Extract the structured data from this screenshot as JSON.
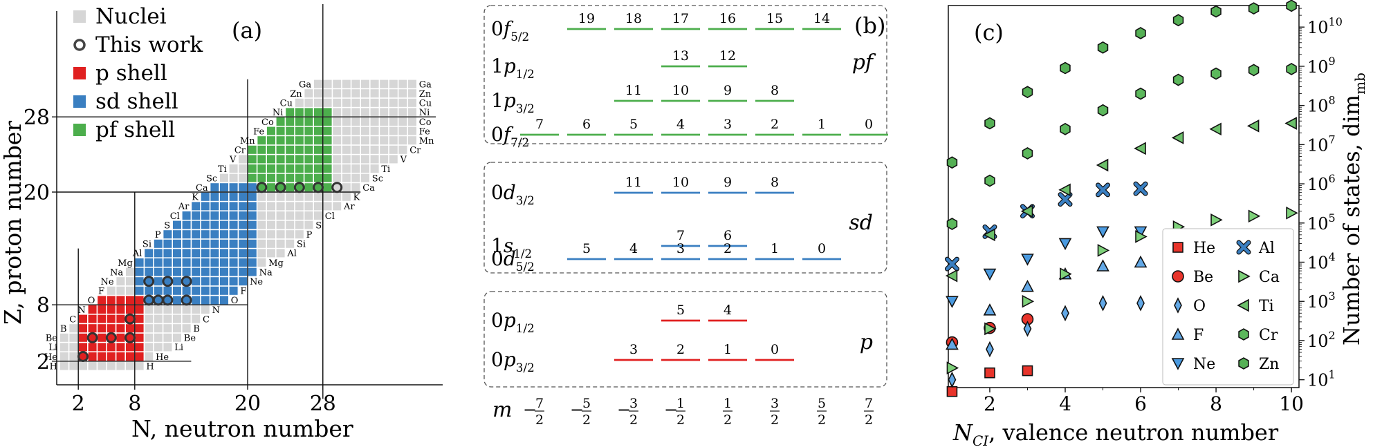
{
  "colors": {
    "nuclei": "#d6d6d6",
    "p_shell": "#e02020",
    "sd_shell": "#3a7fc1",
    "pf_shell": "#4cae4c",
    "He": "#e8342b",
    "Be": "#e8342b",
    "O": "#62a8e6",
    "F": "#62a8e6",
    "Ne": "#4a9ae0",
    "Al": "#3a7fc1",
    "Ca": "#7ed17a",
    "Ti": "#6cc06a",
    "Cr": "#5cb85c",
    "Zn": "#55b055"
  },
  "panel_a": {
    "label": "(a)",
    "xlabel": "N, neutron number",
    "ylabel": "Z, proton number",
    "ticks": [
      "2",
      "8",
      "20",
      "28"
    ],
    "legend": [
      {
        "label": "Nuclei",
        "marker": "square",
        "color": "#d6d6d6"
      },
      {
        "label": "This work",
        "marker": "ring",
        "color": "#444444"
      },
      {
        "label": "p shell",
        "marker": "square",
        "color": "#e02020"
      },
      {
        "label": "sd shell",
        "marker": "square",
        "color": "#3a7fc1"
      },
      {
        "label": "pf shell",
        "marker": "square",
        "color": "#4cae4c"
      }
    ],
    "elements_left": [
      "H",
      "He",
      "Li",
      "Be",
      "B",
      "C",
      "N",
      "O",
      "F",
      "Ne",
      "Na",
      "Mg",
      "Al",
      "Si",
      "P",
      "S",
      "Cl",
      "Ar",
      "K",
      "Ca",
      "Sc",
      "Ti",
      "V",
      "Cr",
      "Mn",
      "Fe",
      "Co",
      "Ni",
      "Cu",
      "Zn",
      "Ga"
    ],
    "elements_right": [
      "H",
      "He",
      "Li",
      "Be",
      "B",
      "C",
      "N",
      "O",
      "F",
      "Ne",
      "Na",
      "Mg",
      "Al",
      "Si",
      "P",
      "S",
      "Cl",
      "Ar",
      "K",
      "Ca",
      "Sc",
      "Ti",
      "V",
      "Cr",
      "Mn",
      "Fe",
      "Co",
      "Ni",
      "Cu",
      "Zn",
      "Ga"
    ]
  },
  "panel_b": {
    "label": "(b)",
    "m_label": "m",
    "m_values": [
      "−7/2",
      "−5/2",
      "−3/2",
      "−1/2",
      "1/2",
      "3/2",
      "5/2",
      "7/2"
    ],
    "groups": [
      {
        "name": "pf",
        "color": "#4cae4c",
        "levels": [
          {
            "orb": "0f",
            "sub": "5/2",
            "indices": [
              19,
              18,
              17,
              16,
              15,
              14
            ],
            "cols": [
              1,
              2,
              3,
              4,
              5,
              6
            ]
          },
          {
            "orb": "1p",
            "sub": "1/2",
            "indices": [
              13,
              12
            ],
            "cols": [
              3,
              4
            ]
          },
          {
            "orb": "1p",
            "sub": "3/2",
            "indices": [
              11,
              10,
              9,
              8
            ],
            "cols": [
              2,
              3,
              4,
              5
            ]
          },
          {
            "orb": "0f",
            "sub": "7/2",
            "indices": [
              7,
              6,
              5,
              4,
              3,
              2,
              1,
              0
            ],
            "cols": [
              0,
              1,
              2,
              3,
              4,
              5,
              6,
              7
            ]
          }
        ]
      },
      {
        "name": "sd",
        "color": "#3a7fc1",
        "levels": [
          {
            "orb": "0d",
            "sub": "3/2",
            "indices": [
              11,
              10,
              9,
              8
            ],
            "cols": [
              2,
              3,
              4,
              5
            ]
          },
          {
            "orb": "1s",
            "sub": "1/2",
            "indices": [
              7,
              6
            ],
            "cols": [
              3,
              4
            ]
          },
          {
            "orb": "0d",
            "sub": "5/2",
            "indices": [
              5,
              4,
              3,
              2,
              1,
              0
            ],
            "cols": [
              1,
              2,
              3,
              4,
              5,
              6
            ]
          }
        ]
      },
      {
        "name": "p",
        "color": "#e02020",
        "levels": [
          {
            "orb": "0p",
            "sub": "1/2",
            "indices": [
              5,
              4
            ],
            "cols": [
              3,
              4
            ]
          },
          {
            "orb": "0p",
            "sub": "3/2",
            "indices": [
              3,
              2,
              1,
              0
            ],
            "cols": [
              2,
              3,
              4,
              5
            ]
          }
        ]
      }
    ]
  },
  "chart_data": {
    "type": "scatter",
    "label": "(c)",
    "xlabel": "N_CI, valence neutron number",
    "ylabel": "Number of states, dim_mb",
    "xlim": [
      0.9,
      10.2
    ],
    "ylim_log10": [
      0.8,
      10.55
    ],
    "y_scale": "log",
    "x_ticks": [
      2,
      4,
      6,
      8,
      10
    ],
    "y_ticks_exp": [
      1,
      2,
      3,
      4,
      5,
      6,
      7,
      8,
      9,
      10
    ],
    "legend_placement": "lower-right",
    "series": [
      {
        "name": "He",
        "marker": "square",
        "color": "#e8342b",
        "x": [
          1,
          2,
          3
        ],
        "y": [
          5,
          15,
          17
        ]
      },
      {
        "name": "Be",
        "marker": "circle",
        "color": "#e8342b",
        "x": [
          1,
          2,
          3
        ],
        "y": [
          90,
          210,
          350
        ]
      },
      {
        "name": "O",
        "marker": "diamond",
        "color": "#62a8e6",
        "x": [
          1,
          2,
          3,
          4,
          5,
          6
        ],
        "y": [
          10,
          60,
          200,
          500,
          900,
          900
        ]
      },
      {
        "name": "F",
        "marker": "triangle-up",
        "color": "#62a8e6",
        "x": [
          1,
          2,
          3,
          4,
          5,
          6
        ],
        "y": [
          80,
          600,
          2400,
          5000,
          8000,
          10000
        ]
      },
      {
        "name": "Ne",
        "marker": "triangle-down",
        "color": "#4a9ae0",
        "x": [
          1,
          2,
          3,
          4,
          5,
          6
        ],
        "y": [
          1000,
          5000,
          12000,
          30000,
          60000,
          60000
        ]
      },
      {
        "name": "Al",
        "marker": "x",
        "color": "#3a7fc1",
        "x": [
          1,
          2,
          3,
          4,
          5,
          6
        ],
        "y": [
          9000,
          60000,
          200000,
          400000,
          700000,
          750000
        ]
      },
      {
        "name": "Ca",
        "marker": "triangle-right",
        "color": "#7ed17a",
        "x": [
          1,
          2,
          3,
          4,
          5,
          6,
          7,
          8,
          9,
          10
        ],
        "y": [
          20,
          200,
          1000,
          5000,
          20000,
          45000,
          80000,
          120000,
          150000,
          180000
        ]
      },
      {
        "name": "Ti",
        "marker": "triangle-left",
        "color": "#6cc06a",
        "x": [
          1,
          2,
          3,
          4,
          5,
          6,
          7,
          8,
          9,
          10
        ],
        "y": [
          4500,
          50000,
          200000,
          700000,
          3000000,
          8000000,
          15000000,
          25000000,
          30000000,
          35000000
        ]
      },
      {
        "name": "Cr",
        "marker": "hexagon",
        "color": "#5cb85c",
        "x": [
          1,
          2,
          3,
          4,
          5,
          6,
          7,
          8,
          9,
          10
        ],
        "y": [
          95000,
          1200000,
          6000000,
          25000000,
          75000000,
          200000000,
          450000000,
          650000000,
          800000000,
          850000000
        ]
      },
      {
        "name": "Zn",
        "marker": "hexagon",
        "color": "#55b055",
        "x": [
          1,
          2,
          3,
          4,
          5,
          6,
          7,
          8,
          9,
          10
        ],
        "y": [
          3500000,
          35000000,
          220000000,
          900000000,
          3000000000,
          7000000000,
          15000000000,
          25000000000,
          30000000000,
          35000000000
        ]
      }
    ]
  }
}
